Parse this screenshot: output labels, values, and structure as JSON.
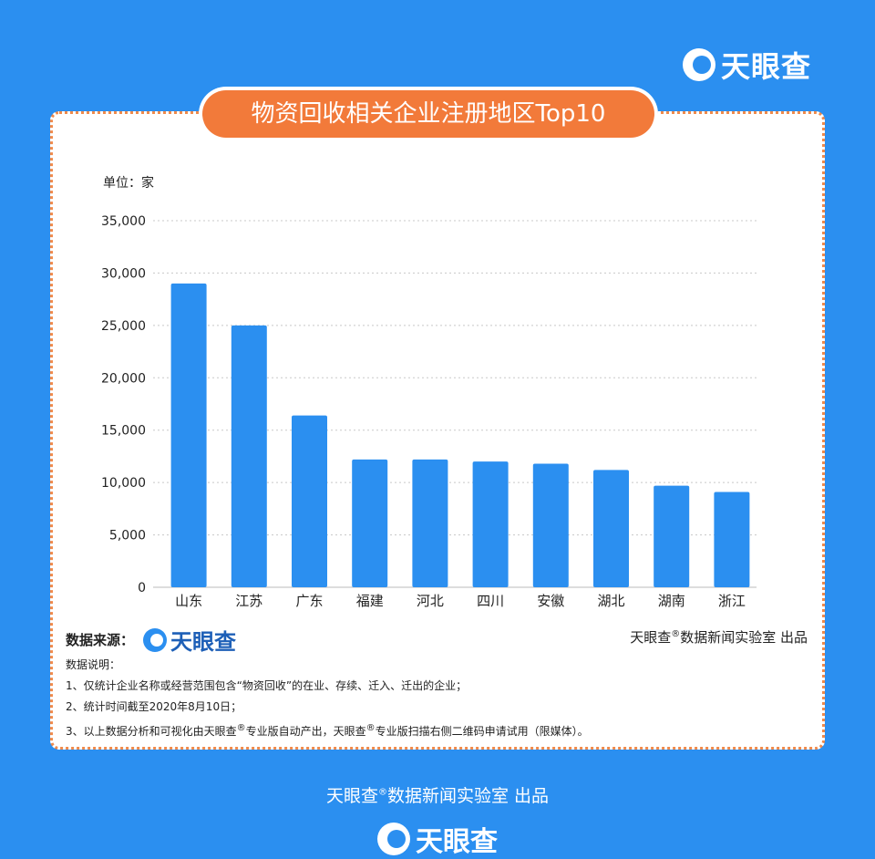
{
  "brand": {
    "name": "天眼查"
  },
  "header": {
    "title": "物资回收相关企业注册地区Top10"
  },
  "chart_data": {
    "type": "bar",
    "title": "物资回收相关企业注册地区Top10",
    "unit_label": "单位：家",
    "categories": [
      "山东",
      "江苏",
      "广东",
      "福建",
      "河北",
      "四川",
      "安徽",
      "湖北",
      "湖南",
      "浙江"
    ],
    "values": [
      29000,
      25000,
      16400,
      12200,
      12200,
      12000,
      11800,
      11200,
      9700,
      9100
    ],
    "yticks": [
      "0",
      "5,000",
      "10,000",
      "15,000",
      "20,000",
      "25,000",
      "30,000",
      "35,000"
    ],
    "ylim": [
      0,
      35000
    ],
    "bar_color": "#2b8ff0",
    "grid": true
  },
  "source": {
    "label": "数据来源：",
    "brand": "天眼查"
  },
  "producer": {
    "prefix": "天眼查",
    "reg": "®",
    "suffix": "数据新闻实验室 出品"
  },
  "notes": {
    "heading": "数据说明：",
    "line1": "1、仅统计企业名称或经营范围包含“物资回收”的在业、存续、迁入、迁出的企业；",
    "line2": "2、统计时间截至2020年8月10日；",
    "line3_a": "3、以上数据分析和可视化由天眼查",
    "line3_reg1": "®",
    "line3_b": "专业版自动产出，天眼查",
    "line3_reg2": "®",
    "line3_c": "专业版扫描右侧二维码申请试用（限媒体）。"
  },
  "footer": {
    "prefix": "天眼查",
    "reg": "®",
    "suffix": "数据新闻实验室 出品",
    "brand": "天眼查"
  },
  "colors": {
    "background": "#2b8ff0",
    "accent": "#f27a3a",
    "bar": "#2b8ff0"
  }
}
